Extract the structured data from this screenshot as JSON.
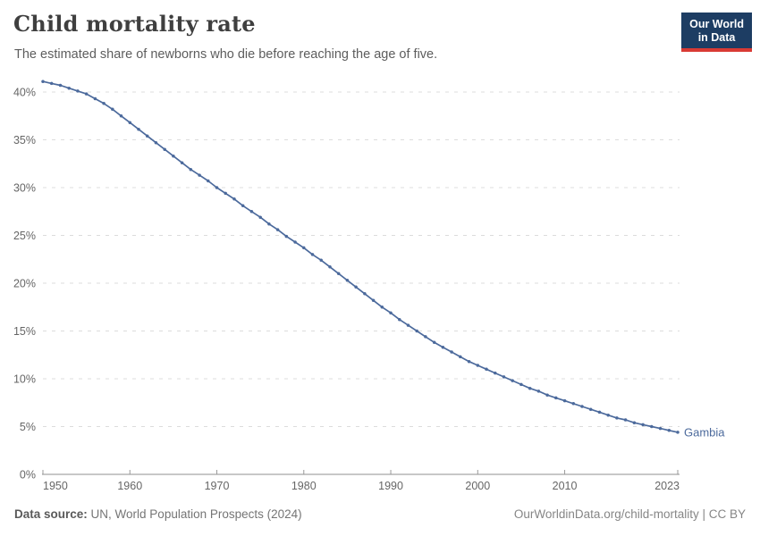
{
  "header": {
    "title": "Child mortality rate",
    "subtitle": "The estimated share of newborns who die before reaching the age of five.",
    "logo": {
      "line1": "Our World",
      "line2": "in Data"
    }
  },
  "colors": {
    "series": "#4c6a9c",
    "logo_bg": "#1d3d63",
    "logo_accent": "#d93a34",
    "grid": "#dcdcdc",
    "axis": "#8f8f8f",
    "tick_text": "#666666"
  },
  "chart_data": {
    "type": "line",
    "title": "Child mortality rate",
    "subtitle": "The estimated share of newborns who die before reaching the age of five.",
    "unit": "%",
    "entity": "Gambia",
    "end_label": "Gambia",
    "x": [
      1950,
      1951,
      1952,
      1953,
      1954,
      1955,
      1956,
      1957,
      1958,
      1959,
      1960,
      1961,
      1962,
      1963,
      1964,
      1965,
      1966,
      1967,
      1968,
      1969,
      1970,
      1971,
      1972,
      1973,
      1974,
      1975,
      1976,
      1977,
      1978,
      1979,
      1980,
      1981,
      1982,
      1983,
      1984,
      1985,
      1986,
      1987,
      1988,
      1989,
      1990,
      1991,
      1992,
      1993,
      1994,
      1995,
      1996,
      1997,
      1998,
      1999,
      2000,
      2001,
      2002,
      2003,
      2004,
      2005,
      2006,
      2007,
      2008,
      2009,
      2010,
      2011,
      2012,
      2013,
      2014,
      2015,
      2016,
      2017,
      2018,
      2019,
      2020,
      2021,
      2022,
      2023
    ],
    "series": [
      {
        "name": "Gambia",
        "color": "#4c6a9c",
        "values": [
          41.1,
          40.9,
          40.7,
          40.4,
          40.1,
          39.8,
          39.3,
          38.8,
          38.2,
          37.5,
          36.8,
          36.1,
          35.4,
          34.7,
          34.0,
          33.3,
          32.6,
          31.9,
          31.3,
          30.7,
          30.0,
          29.4,
          28.8,
          28.1,
          27.5,
          26.9,
          26.2,
          25.6,
          24.9,
          24.3,
          23.7,
          23.0,
          22.4,
          21.7,
          21.0,
          20.3,
          19.6,
          18.9,
          18.2,
          17.5,
          16.9,
          16.2,
          15.6,
          15.0,
          14.4,
          13.8,
          13.3,
          12.8,
          12.3,
          11.8,
          11.4,
          11.0,
          10.6,
          10.2,
          9.8,
          9.4,
          9.0,
          8.7,
          8.3,
          8.0,
          7.7,
          7.4,
          7.1,
          6.8,
          6.5,
          6.2,
          5.9,
          5.7,
          5.4,
          5.2,
          5.0,
          4.8,
          4.6,
          4.4
        ]
      }
    ],
    "x_ticks": [
      1950,
      1960,
      1970,
      1980,
      1990,
      2000,
      2010,
      2023
    ],
    "y_ticks": [
      0,
      5,
      10,
      15,
      20,
      25,
      30,
      35,
      40
    ],
    "y_tick_suffix": "%",
    "xlim": [
      1950,
      2023
    ],
    "ylim": [
      0,
      40
    ],
    "grid": "horizontal-dashed",
    "legend_position": "end-of-line-label"
  },
  "footer": {
    "source_label": "Data source:",
    "source_text": "UN, World Population Prospects (2024)",
    "link_text": "OurWorldinData.org/child-mortality | CC BY"
  }
}
